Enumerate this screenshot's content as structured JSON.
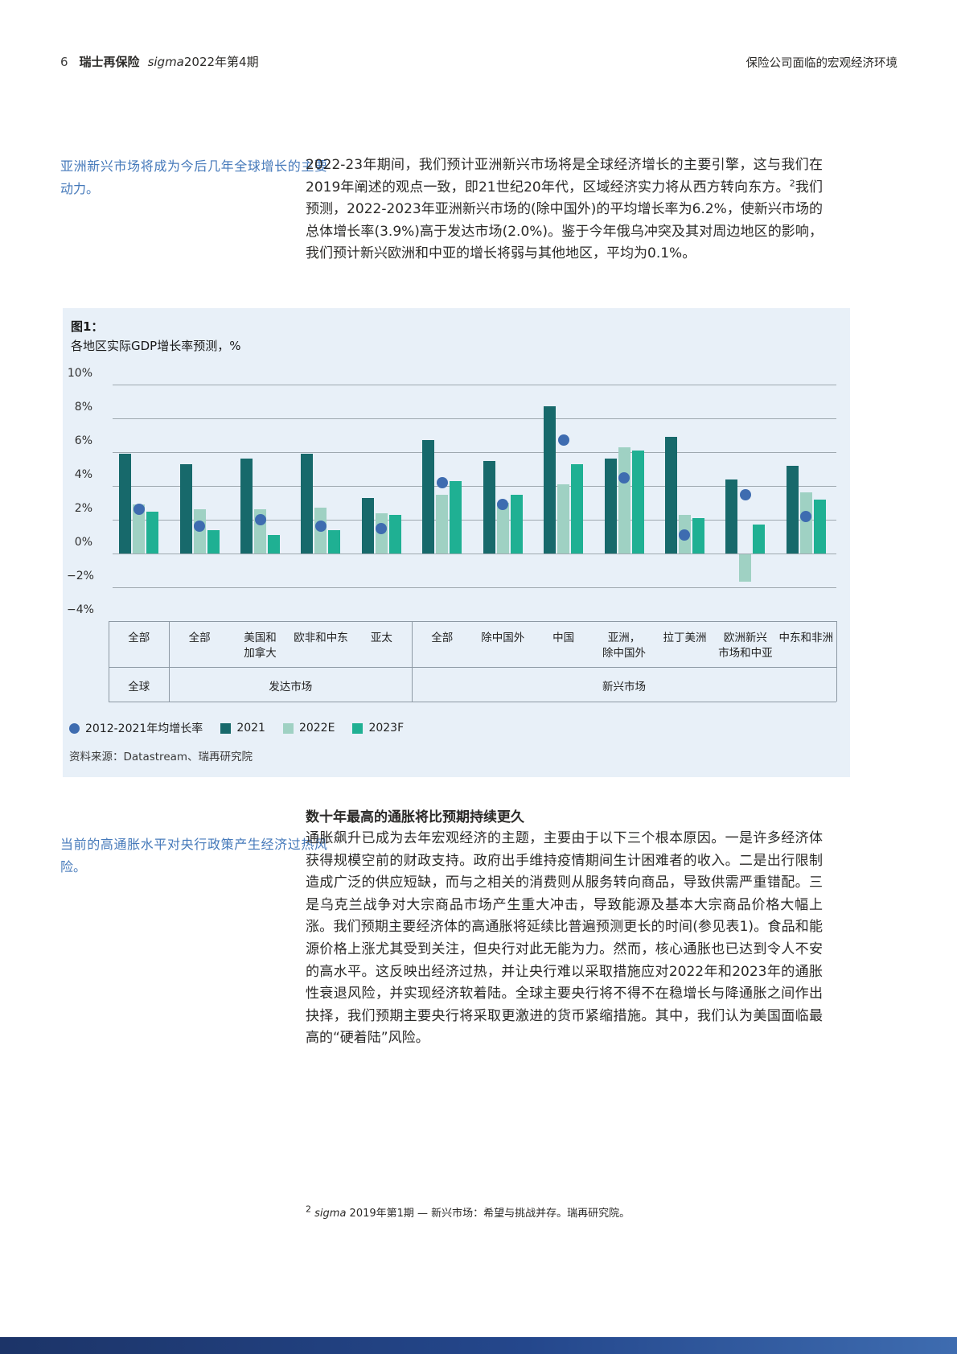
{
  "header": {
    "page_number": "6",
    "brand": "瑞士再保险",
    "journal_italic": "sigma",
    "issue": "2022年第4期",
    "section_title": "保险公司面临的宏观经济环境"
  },
  "side_notes": {
    "note1": "亚洲新兴市场将成为今后几年全球增长的主要动力。",
    "note2": "当前的高通胀水平对央行政策产生经济过热风险。"
  },
  "intro": {
    "text_before_sup": "2022-23年期间，我们预计亚洲新兴市场将是全球经济增长的主要引擎，这与我们在2019年阐述的观点一致，即21世纪20年代，区域经济实力将从西方转向东方。",
    "sup": "2",
    "text_after_sup": "我们预测，2022-2023年亚洲新兴市场的(除中国外)的平均增长率为6.2%，使新兴市场的总体增长率(3.9%)高于发达市场(2.0%)。鉴于今年俄乌冲突及其对周边地区的影响，我们预计新兴欧洲和中亚的增长将弱与其他地区，平均为0.1%。"
  },
  "chart_data": {
    "type": "bar",
    "figure_label": "图1：",
    "title": "各地区实际GDP增长率预测，%",
    "ylim": [
      -4,
      10
    ],
    "yticks": [
      10,
      8,
      6,
      4,
      2,
      0,
      -2,
      -4
    ],
    "grid": true,
    "legend_position": "bottom-left",
    "categories": [
      "全部",
      "全部",
      "美国和\n加拿大",
      "欧非和中东",
      "亚太",
      "全部",
      "除中国外",
      "中国",
      "亚洲，\n除中国外",
      "拉丁美洲",
      "欧洲新兴\n市场和中亚",
      "中东和非洲"
    ],
    "groups": [
      {
        "label": "全球",
        "from": 0,
        "to": 0
      },
      {
        "label": "发达市场",
        "from": 1,
        "to": 4
      },
      {
        "label": "新兴市场",
        "from": 5,
        "to": 11
      }
    ],
    "series": [
      {
        "name": "2012-2021年均增长率",
        "style": "dot",
        "color": "#3e6cb0",
        "values": [
          2.6,
          1.6,
          2.0,
          1.6,
          1.5,
          4.2,
          2.9,
          6.7,
          4.5,
          1.1,
          3.5,
          2.2
        ]
      },
      {
        "name": "2021",
        "style": "bar",
        "color": "#17696b",
        "values": [
          5.9,
          5.3,
          5.6,
          5.9,
          3.3,
          6.7,
          5.5,
          8.7,
          5.6,
          6.9,
          4.4,
          5.2
        ]
      },
      {
        "name": "2022E",
        "style": "bar",
        "color": "#9fd1c3",
        "values": [
          2.9,
          2.6,
          2.6,
          2.7,
          2.4,
          3.5,
          3.0,
          4.1,
          6.3,
          2.3,
          -1.6,
          3.6
        ]
      },
      {
        "name": "2023F",
        "style": "bar",
        "color": "#1fb093",
        "values": [
          2.5,
          1.4,
          1.1,
          1.4,
          2.3,
          4.3,
          3.5,
          5.3,
          6.1,
          2.1,
          1.7,
          3.2
        ]
      }
    ],
    "source": "资料来源：Datastream、瑞再研究院"
  },
  "section2": {
    "heading": "数十年最高的通胀将比预期持续更久",
    "paragraph": "通胀飙升已成为去年宏观经济的主题，主要由于以下三个根本原因。一是许多经济体获得规模空前的财政支持。政府出手维持疫情期间生计困难者的收入。二是出行限制造成广泛的供应短缺，而与之相关的消费则从服务转向商品，导致供需严重错配。三是乌克兰战争对大宗商品市场产生重大冲击，导致能源及基本大宗商品价格大幅上涨。我们预期主要经济体的高通胀将延续比普遍预测更长的时间(参见表1)。食品和能源价格上涨尤其受到关注，但央行对此无能为力。然而，核心通胀也已达到令人不安的高水平。这反映出经济过热，并让央行难以采取措施应对2022年和2023年的通胀性衰退风险，并实现经济软着陆。全球主要央行将不得不在稳增长与降通胀之间作出抉择，我们预期主要央行将采取更激进的货币紧缩措施。其中，我们认为美国面临最高的“硬着陆”风险。"
  },
  "footnote": {
    "marker": "2",
    "journal_italic": "sigma",
    "text": " 2019年第1期 — 新兴市场：希望与挑战并存。瑞再研究院。"
  }
}
